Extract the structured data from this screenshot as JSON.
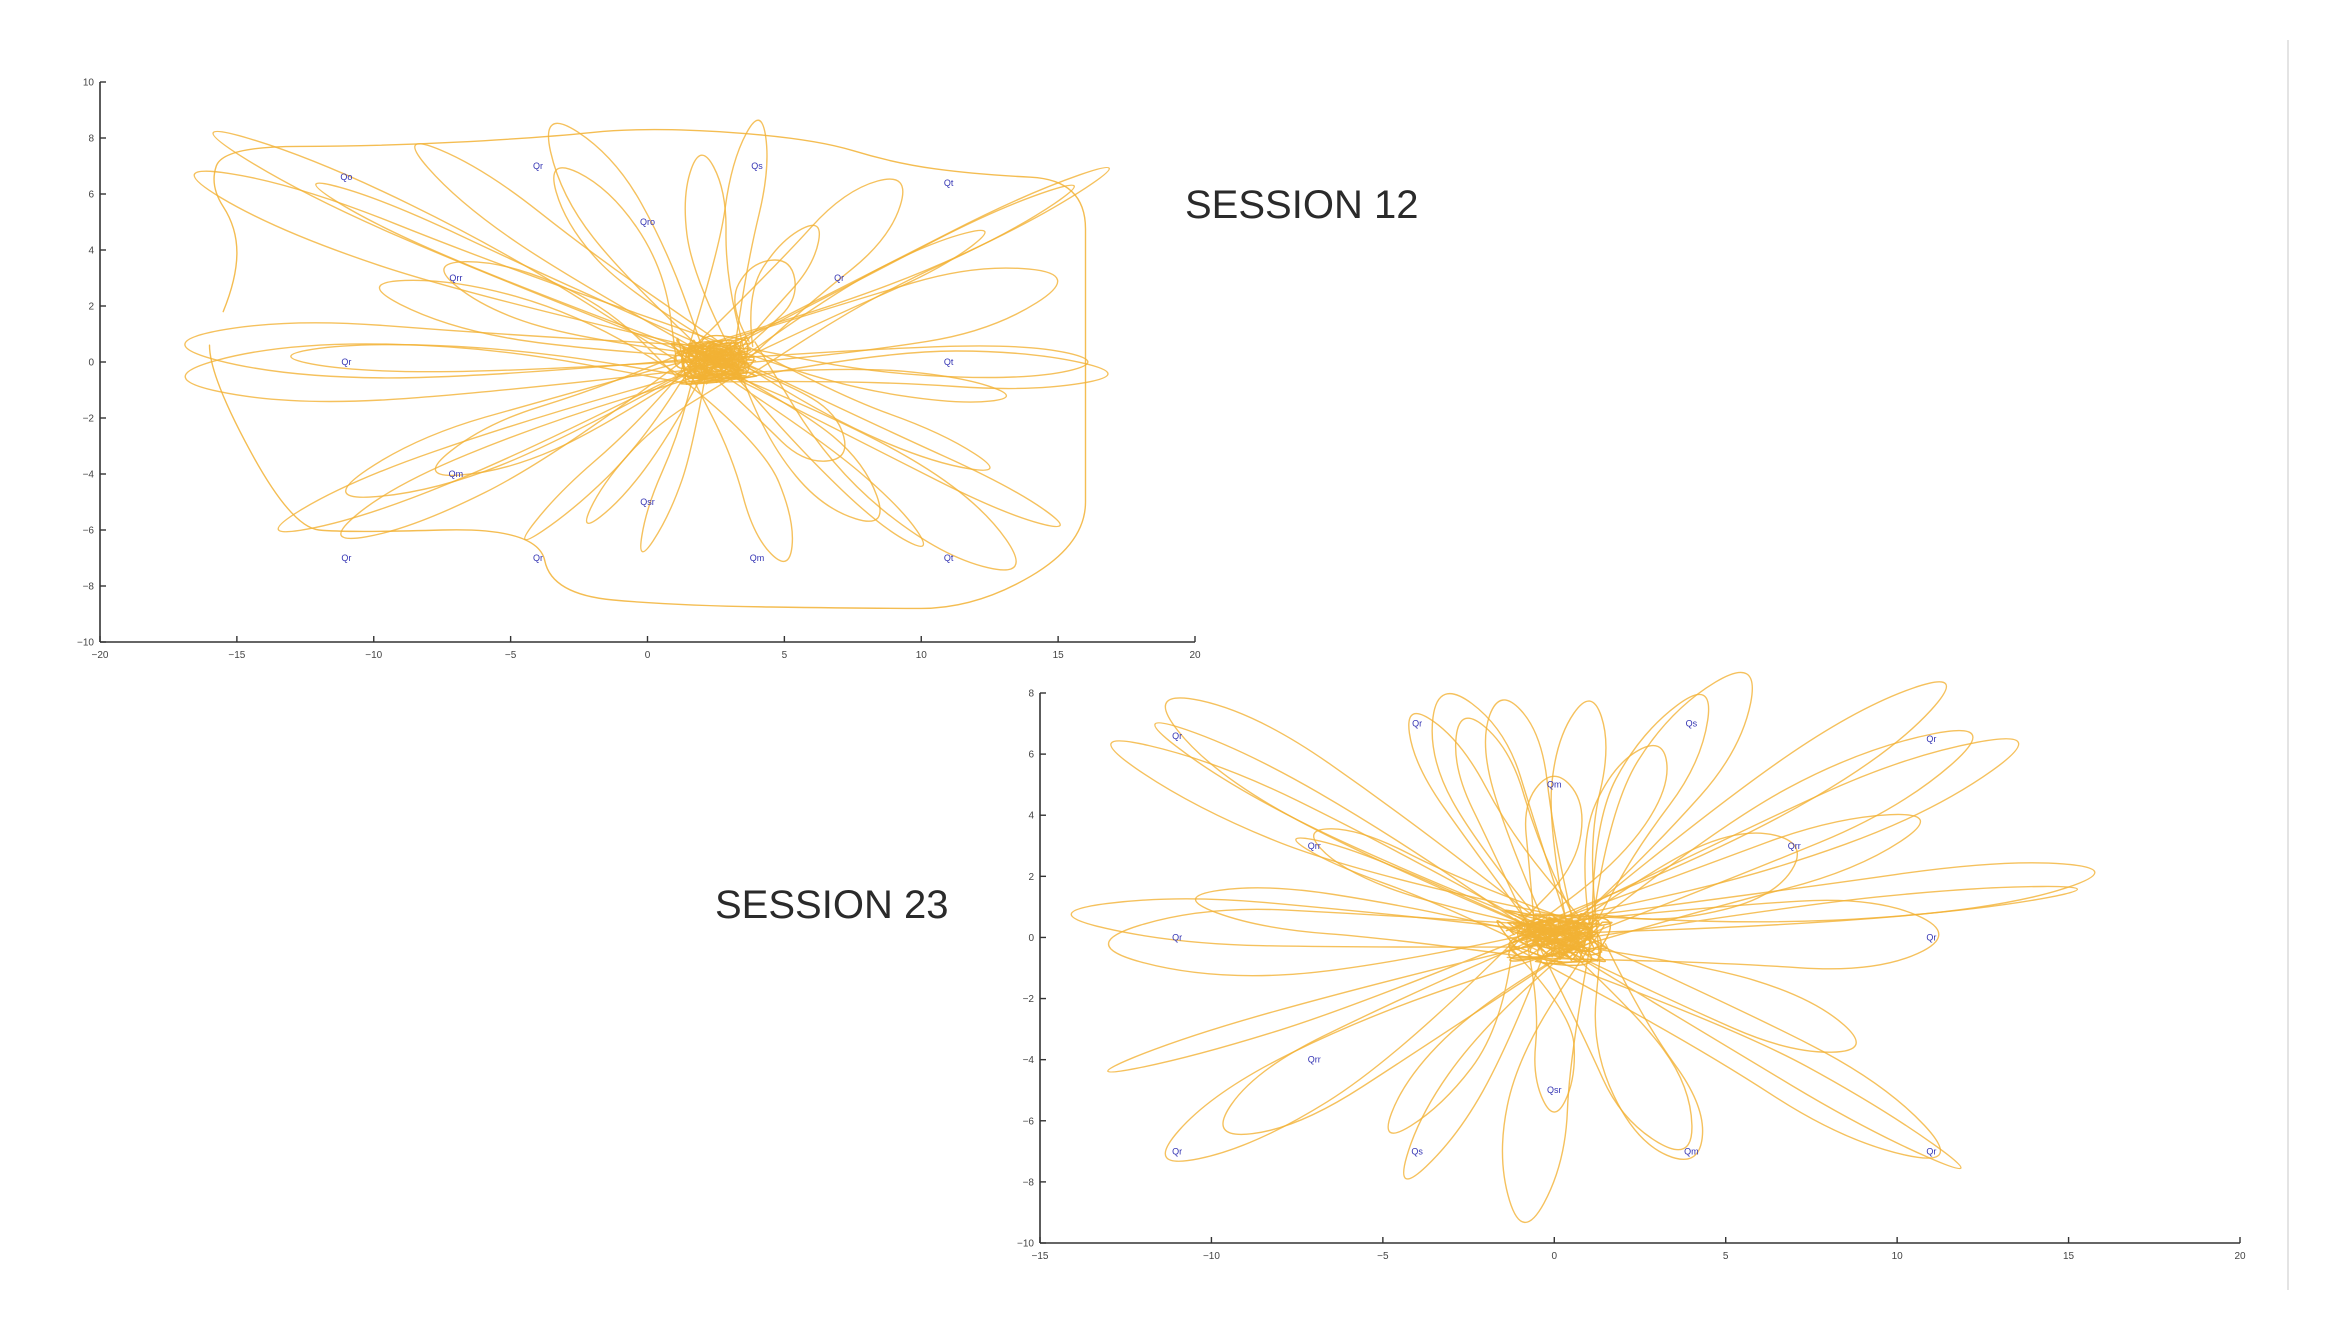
{
  "chart_data": [
    {
      "type": "line",
      "title": "SESSION 12",
      "xlim": [
        -20,
        20
      ],
      "ylim": [
        -10,
        10
      ],
      "x_ticks": [
        -20,
        -15,
        -10,
        -5,
        0,
        5,
        10,
        15,
        20
      ],
      "y_ticks": [
        -10,
        -8,
        -6,
        -4,
        -2,
        0,
        2,
        4,
        6,
        8,
        10
      ],
      "trace_color": "#f2b134",
      "label_color": "#3333b3",
      "targets": [
        {
          "label": "Qo",
          "x": -11,
          "y": 6.6
        },
        {
          "label": "Qr",
          "x": -4,
          "y": 7
        },
        {
          "label": "Qs",
          "x": 4,
          "y": 7
        },
        {
          "label": "Qt",
          "x": 11,
          "y": 6.4
        },
        {
          "label": "Qro",
          "x": 0,
          "y": 5
        },
        {
          "label": "Qrr",
          "x": -7,
          "y": 3
        },
        {
          "label": "Qr",
          "x": 7,
          "y": 3
        },
        {
          "label": "Qr",
          "x": -11,
          "y": 0
        },
        {
          "label": "Qt",
          "x": 11,
          "y": 0
        },
        {
          "label": "Qm",
          "x": -7,
          "y": -4
        },
        {
          "label": "Qsr",
          "x": 0,
          "y": -5
        },
        {
          "label": "Qr",
          "x": -11,
          "y": -7
        },
        {
          "label": "Qr",
          "x": -4,
          "y": -7
        },
        {
          "label": "Qm",
          "x": 4,
          "y": -7
        },
        {
          "label": "Qt",
          "x": 11,
          "y": -7
        }
      ],
      "center": [
        2.5,
        0
      ],
      "loop_tips": [
        [
          -16,
          6.5
        ],
        [
          -15,
          7.8
        ],
        [
          -8,
          7.4
        ],
        [
          -3,
          7.8
        ],
        [
          4,
          8.3
        ],
        [
          9,
          6.2
        ],
        [
          16,
          6.5
        ],
        [
          12,
          4.5
        ],
        [
          -12,
          6.3
        ],
        [
          -3,
          6.5
        ],
        [
          15,
          6.0
        ],
        [
          14,
          2.7
        ],
        [
          -7,
          3.2
        ],
        [
          5,
          3.4
        ],
        [
          -16,
          0.6
        ],
        [
          -16,
          -0.5
        ],
        [
          -13,
          0.2
        ],
        [
          16,
          0
        ],
        [
          16,
          -0.4
        ],
        [
          13,
          -1.2
        ],
        [
          -13,
          -5.8
        ],
        [
          -11,
          -6.1
        ],
        [
          -7,
          -3.6
        ],
        [
          -2,
          -5.5
        ],
        [
          5,
          -7
        ],
        [
          13,
          -7
        ],
        [
          15,
          -5.8
        ],
        [
          -4,
          -5.9
        ],
        [
          10,
          -6.5
        ],
        [
          7,
          -3.2
        ],
        [
          12,
          -3.6
        ],
        [
          -10,
          -4.3
        ],
        [
          0,
          -6.3
        ],
        [
          6,
          4.6
        ],
        [
          -9,
          2.5
        ],
        [
          2,
          7.1
        ],
        [
          8,
          -5.2
        ]
      ],
      "boundary": [
        [
          -16,
          0.6
        ],
        [
          -16,
          -0.5
        ],
        [
          -13,
          -5.9
        ],
        [
          -11,
          -6.1
        ],
        [
          -4,
          -5.9
        ],
        [
          -3.5,
          -8.3
        ],
        [
          1,
          -8.7
        ],
        [
          8,
          -8.8
        ],
        [
          12,
          -8.8
        ],
        [
          16,
          -6.5
        ],
        [
          16,
          -3.5
        ],
        [
          16,
          3.0
        ],
        [
          16,
          6.5
        ],
        [
          12,
          6.7
        ],
        [
          9,
          7.1
        ],
        [
          6,
          8.0
        ],
        [
          0,
          8.4
        ],
        [
          -4,
          8.0
        ],
        [
          -10,
          7.7
        ],
        [
          -15.5,
          7.7
        ],
        [
          -16,
          6.3
        ],
        [
          -15,
          4.8
        ],
        [
          -15,
          3.0
        ],
        [
          -16,
          0.6
        ]
      ]
    },
    {
      "type": "line",
      "title": "SESSION 23",
      "xlim": [
        -15,
        20
      ],
      "ylim": [
        -10,
        8
      ],
      "x_ticks": [
        -15,
        -10,
        -5,
        0,
        5,
        10,
        15,
        20
      ],
      "y_ticks": [
        -10,
        -8,
        -6,
        -4,
        -2,
        0,
        2,
        4,
        6,
        8
      ],
      "trace_color": "#f2b134",
      "label_color": "#3333b3",
      "targets": [
        {
          "label": "Qr",
          "x": -11,
          "y": 6.6
        },
        {
          "label": "Qr",
          "x": -4,
          "y": 7
        },
        {
          "label": "Qs",
          "x": 4,
          "y": 7
        },
        {
          "label": "Qr",
          "x": 11,
          "y": 6.5
        },
        {
          "label": "Qm",
          "x": 0,
          "y": 5
        },
        {
          "label": "Qrr",
          "x": -7,
          "y": 3
        },
        {
          "label": "Qrr",
          "x": 7,
          "y": 3
        },
        {
          "label": "Qr",
          "x": -11,
          "y": 0
        },
        {
          "label": "Qr",
          "x": 11,
          "y": 0
        },
        {
          "label": "Qrr",
          "x": -7,
          "y": -4
        },
        {
          "label": "Qsr",
          "x": 0,
          "y": -5
        },
        {
          "label": "Qr",
          "x": -11,
          "y": -7
        },
        {
          "label": "Qs",
          "x": -4,
          "y": -7
        },
        {
          "label": "Qm",
          "x": 4,
          "y": -7
        },
        {
          "label": "Qr",
          "x": 11,
          "y": -7
        }
      ],
      "center": [
        0,
        0
      ],
      "loop_tips": [
        [
          -11,
          7.5
        ],
        [
          -11,
          6.6
        ],
        [
          -4,
          7.1
        ],
        [
          -3,
          7.5
        ],
        [
          -1.5,
          7.7
        ],
        [
          1,
          7.5
        ],
        [
          4,
          7.3
        ],
        [
          5.2,
          8.0
        ],
        [
          11,
          8.0
        ],
        [
          12.5,
          5.9
        ],
        [
          11.2,
          6.1
        ],
        [
          0,
          5.2
        ],
        [
          -7,
          3.4
        ],
        [
          7,
          2.9
        ],
        [
          10,
          3.6
        ],
        [
          -13,
          0.7
        ],
        [
          -12,
          -0.2
        ],
        [
          -10,
          1.2
        ],
        [
          11,
          0.1
        ],
        [
          15.5,
          2.1
        ],
        [
          14.5,
          1.5
        ],
        [
          8.5,
          -3.4
        ],
        [
          -12.5,
          -4.2
        ],
        [
          -11,
          -7
        ],
        [
          -9.5,
          -6.2
        ],
        [
          -4,
          -7.3
        ],
        [
          -4.5,
          -6.0
        ],
        [
          -0.8,
          -8.6
        ],
        [
          0,
          -5.4
        ],
        [
          4,
          -7.2
        ],
        [
          3.5,
          -6.4
        ],
        [
          11,
          -7
        ],
        [
          10.6,
          -6.7
        ],
        [
          -7.5,
          3.2
        ],
        [
          -12,
          5.9
        ],
        [
          3,
          6.2
        ],
        [
          -2.5,
          6.9
        ]
      ]
    }
  ],
  "annotations": {
    "session_12_label": "SESSION 12",
    "session_23_label": "SESSION 23"
  }
}
